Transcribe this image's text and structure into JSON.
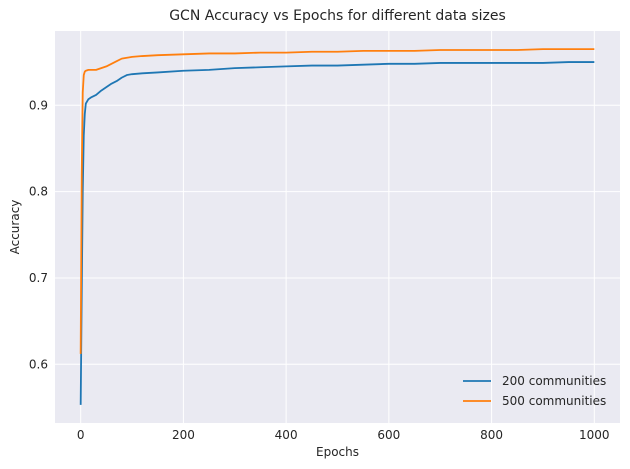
{
  "chart_data": {
    "type": "line",
    "title": "GCN Accuracy vs Epochs for different data sizes",
    "xlabel": "Epochs",
    "ylabel": "Accuracy",
    "xlim": [
      -50,
      1050
    ],
    "ylim": [
      0.532,
      0.986
    ],
    "xticks": [
      0,
      200,
      400,
      600,
      800,
      1000
    ],
    "xtick_labels": [
      "0",
      "200",
      "400",
      "600",
      "800",
      "1000"
    ],
    "yticks": [
      0.6,
      0.7,
      0.8,
      0.9
    ],
    "ytick_labels": [
      "0.6",
      "0.7",
      "0.8",
      "0.9"
    ],
    "grid": true,
    "legend_position": "bottom-right",
    "series": [
      {
        "name": "200 communities",
        "color": "#1f77b4",
        "x": [
          0,
          2,
          4,
          6,
          8,
          10,
          15,
          20,
          30,
          40,
          50,
          60,
          70,
          80,
          90,
          100,
          120,
          150,
          200,
          250,
          300,
          350,
          400,
          450,
          500,
          550,
          600,
          650,
          700,
          750,
          800,
          850,
          900,
          950,
          1000
        ],
        "y": [
          0.553,
          0.68,
          0.8,
          0.865,
          0.89,
          0.902,
          0.907,
          0.909,
          0.912,
          0.917,
          0.921,
          0.925,
          0.928,
          0.932,
          0.935,
          0.936,
          0.937,
          0.938,
          0.94,
          0.941,
          0.943,
          0.944,
          0.945,
          0.946,
          0.946,
          0.947,
          0.948,
          0.948,
          0.949,
          0.949,
          0.949,
          0.949,
          0.949,
          0.95,
          0.95
        ]
      },
      {
        "name": "500 communities",
        "color": "#ff7f0e",
        "x": [
          0,
          2,
          4,
          6,
          8,
          10,
          15,
          20,
          30,
          40,
          50,
          60,
          70,
          80,
          90,
          100,
          120,
          150,
          200,
          250,
          300,
          350,
          400,
          450,
          500,
          550,
          600,
          650,
          700,
          750,
          800,
          850,
          900,
          950,
          1000
        ],
        "y": [
          0.612,
          0.82,
          0.915,
          0.935,
          0.939,
          0.94,
          0.941,
          0.941,
          0.941,
          0.943,
          0.945,
          0.948,
          0.951,
          0.954,
          0.955,
          0.956,
          0.957,
          0.958,
          0.959,
          0.96,
          0.96,
          0.961,
          0.961,
          0.962,
          0.962,
          0.963,
          0.963,
          0.963,
          0.964,
          0.964,
          0.964,
          0.964,
          0.965,
          0.965,
          0.965
        ]
      }
    ]
  }
}
